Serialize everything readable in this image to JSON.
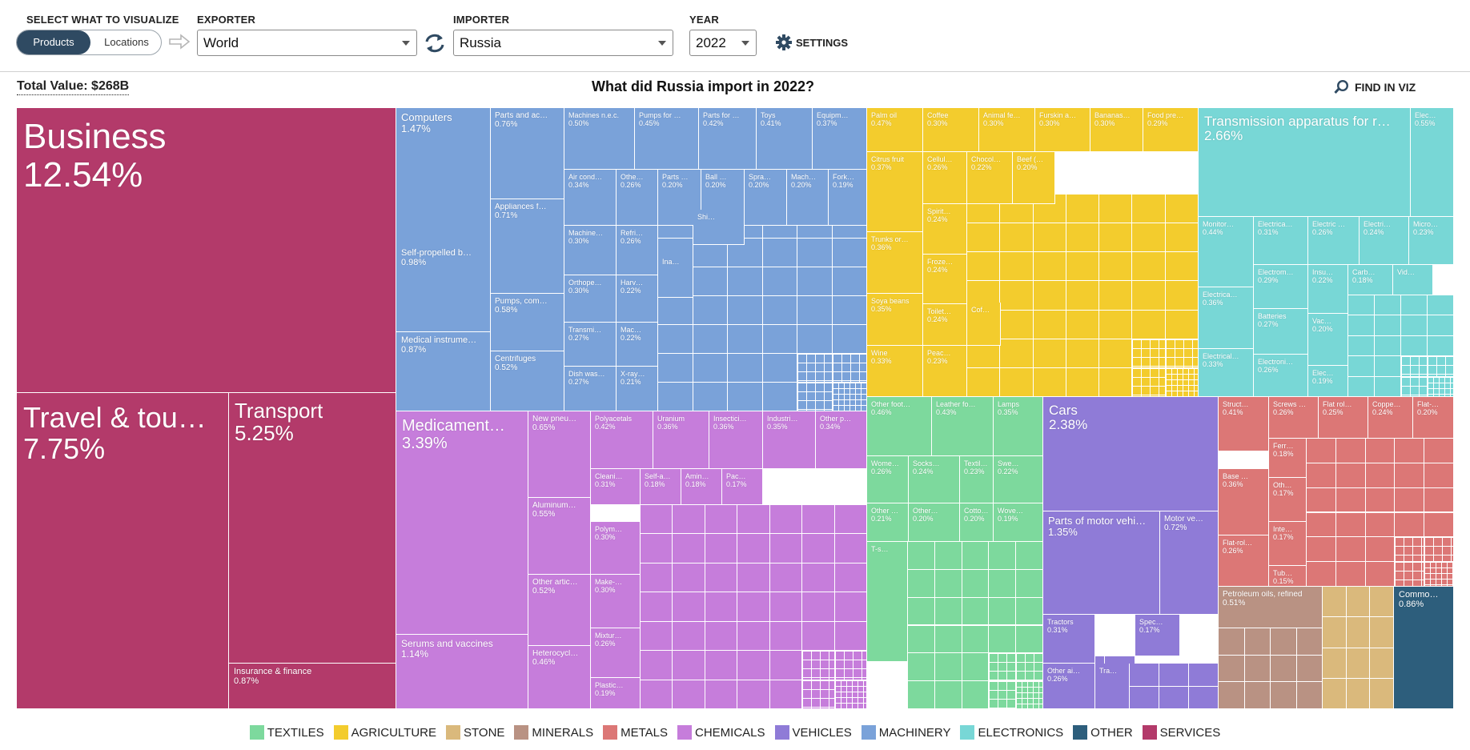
{
  "header": {
    "visualize_label": "SELECT WHAT TO VISUALIZE",
    "products_label": "Products",
    "locations_label": "Locations",
    "exporter_label": "EXPORTER",
    "exporter_value": "World",
    "importer_label": "IMPORTER",
    "importer_value": "Russia",
    "year_label": "YEAR",
    "year_value": "2022",
    "settings_label": "SETTINGS"
  },
  "subheader": {
    "total_value": "Total Value: $268B",
    "title": "What did Russia import in 2022?",
    "find_label": "FIND IN VIZ"
  },
  "colors": {
    "TEXTILES": "#7dd99d",
    "AGRICULTURE": "#f3cc2d",
    "STONE": "#dab97c",
    "MINERALS": "#b99283",
    "METALS": "#dc7776",
    "CHEMICALS": "#c67ddb",
    "VEHICLES": "#8f7bd7",
    "MACHINERY": "#7aa2d9",
    "ELECTRONICS": "#78d7d6",
    "OTHER": "#2d5e7c",
    "SERVICES": "#b33a6a"
  },
  "legend": [
    "TEXTILES",
    "AGRICULTURE",
    "STONE",
    "MINERALS",
    "METALS",
    "CHEMICALS",
    "VEHICLES",
    "MACHINERY",
    "ELECTRONICS",
    "OTHER",
    "SERVICES"
  ],
  "chart_data": {
    "type": "treemap",
    "title": "What did Russia import in 2022?",
    "total": "$268B",
    "items": [
      {
        "name": "Business",
        "share": 12.54,
        "sector": "SERVICES"
      },
      {
        "name": "Travel & tou…",
        "share": 7.75,
        "sector": "SERVICES"
      },
      {
        "name": "Transport",
        "share": 5.25,
        "sector": "SERVICES"
      },
      {
        "name": "Insurance & finance",
        "share": 0.87,
        "sector": "SERVICES"
      },
      {
        "name": "Computers",
        "share": 1.47,
        "sector": "MACHINERY"
      },
      {
        "name": "Self-propelled b…",
        "share": 0.98,
        "sector": "MACHINERY"
      },
      {
        "name": "Medical instrume…",
        "share": 0.87,
        "sector": "MACHINERY"
      },
      {
        "name": "Parts and ac…",
        "share": 0.76,
        "sector": "MACHINERY"
      },
      {
        "name": "Appliances f…",
        "share": 0.71,
        "sector": "MACHINERY"
      },
      {
        "name": "Pumps, com…",
        "share": 0.58,
        "sector": "MACHINERY"
      },
      {
        "name": "Centrifuges",
        "share": 0.52,
        "sector": "MACHINERY"
      },
      {
        "name": "Machines n.e.c.",
        "share": 0.5,
        "sector": "MACHINERY"
      },
      {
        "name": "Pumps for …",
        "share": 0.45,
        "sector": "MACHINERY"
      },
      {
        "name": "Parts for …",
        "share": 0.42,
        "sector": "MACHINERY"
      },
      {
        "name": "Toys",
        "share": 0.41,
        "sector": "MACHINERY"
      },
      {
        "name": "Equipm…",
        "share": 0.37,
        "sector": "MACHINERY"
      },
      {
        "name": "Air cond…",
        "share": 0.34,
        "sector": "MACHINERY"
      },
      {
        "name": "Othe…",
        "share": 0.26,
        "sector": "MACHINERY"
      },
      {
        "name": "Parts …",
        "share": 0.2,
        "sector": "MACHINERY"
      },
      {
        "name": "Ball …",
        "share": 0.2,
        "sector": "MACHINERY"
      },
      {
        "name": "Spra…",
        "share": 0.2,
        "sector": "MACHINERY"
      },
      {
        "name": "Mach…",
        "share": 0.2,
        "sector": "MACHINERY"
      },
      {
        "name": "Fork…",
        "share": 0.19,
        "sector": "MACHINERY"
      },
      {
        "name": "Machine…",
        "share": 0.3,
        "sector": "MACHINERY"
      },
      {
        "name": "Refri…",
        "share": 0.26,
        "sector": "MACHINERY"
      },
      {
        "name": "Orthope…",
        "share": 0.3,
        "sector": "MACHINERY"
      },
      {
        "name": "Harv…",
        "share": 0.22,
        "sector": "MACHINERY"
      },
      {
        "name": "Transmi…",
        "share": 0.27,
        "sector": "MACHINERY"
      },
      {
        "name": "Mac…",
        "share": 0.22,
        "sector": "MACHINERY"
      },
      {
        "name": "Dish was…",
        "share": 0.27,
        "sector": "MACHINERY"
      },
      {
        "name": "X-ray…",
        "share": 0.21,
        "sector": "MACHINERY"
      },
      {
        "name": "Shi…",
        "share": null,
        "sector": "MACHINERY"
      },
      {
        "name": "Ina…",
        "share": null,
        "sector": "MACHINERY"
      },
      {
        "name": "Palm oil",
        "share": 0.47,
        "sector": "AGRICULTURE"
      },
      {
        "name": "Coffee",
        "share": 0.3,
        "sector": "AGRICULTURE"
      },
      {
        "name": "Animal fe…",
        "share": 0.3,
        "sector": "AGRICULTURE"
      },
      {
        "name": "Furskin a…",
        "share": 0.3,
        "sector": "AGRICULTURE"
      },
      {
        "name": "Bananas…",
        "share": 0.3,
        "sector": "AGRICULTURE"
      },
      {
        "name": "Food pre…",
        "share": 0.29,
        "sector": "AGRICULTURE"
      },
      {
        "name": "Citrus fruit",
        "share": 0.37,
        "sector": "AGRICULTURE"
      },
      {
        "name": "Cellul…",
        "share": 0.26,
        "sector": "AGRICULTURE"
      },
      {
        "name": "Chocol…",
        "share": 0.22,
        "sector": "AGRICULTURE"
      },
      {
        "name": "Beef (…",
        "share": 0.2,
        "sector": "AGRICULTURE"
      },
      {
        "name": "Trunks or…",
        "share": 0.36,
        "sector": "AGRICULTURE"
      },
      {
        "name": "Spirit…",
        "share": 0.24,
        "sector": "AGRICULTURE"
      },
      {
        "name": "Froze…",
        "share": 0.24,
        "sector": "AGRICULTURE"
      },
      {
        "name": "Soya beans",
        "share": 0.35,
        "sector": "AGRICULTURE"
      },
      {
        "name": "Toilet…",
        "share": 0.24,
        "sector": "AGRICULTURE"
      },
      {
        "name": "Cof…",
        "share": null,
        "sector": "AGRICULTURE"
      },
      {
        "name": "Wine",
        "share": 0.33,
        "sector": "AGRICULTURE"
      },
      {
        "name": "Peac…",
        "share": 0.23,
        "sector": "AGRICULTURE"
      },
      {
        "name": "Transmission apparatus for r…",
        "share": 2.66,
        "sector": "ELECTRONICS"
      },
      {
        "name": "Elec…",
        "share": 0.55,
        "sector": "ELECTRONICS"
      },
      {
        "name": "Monitor…",
        "share": 0.44,
        "sector": "ELECTRONICS"
      },
      {
        "name": "Electrica…",
        "share": 0.31,
        "sector": "ELECTRONICS"
      },
      {
        "name": "Electric …",
        "share": 0.26,
        "sector": "ELECTRONICS"
      },
      {
        "name": "Electri…",
        "share": 0.24,
        "sector": "ELECTRONICS"
      },
      {
        "name": "Micro…",
        "share": 0.23,
        "sector": "ELECTRONICS"
      },
      {
        "name": "Electrom…",
        "share": 0.29,
        "sector": "ELECTRONICS"
      },
      {
        "name": "Insu…",
        "share": 0.22,
        "sector": "ELECTRONICS"
      },
      {
        "name": "Carb…",
        "share": 0.18,
        "sector": "ELECTRONICS"
      },
      {
        "name": "Vid…",
        "share": null,
        "sector": "ELECTRONICS"
      },
      {
        "name": "Electrica…",
        "share": 0.36,
        "sector": "ELECTRONICS"
      },
      {
        "name": "Batteries",
        "share": 0.27,
        "sector": "ELECTRONICS"
      },
      {
        "name": "Vac…",
        "share": 0.2,
        "sector": "ELECTRONICS"
      },
      {
        "name": "Electrical…",
        "share": 0.33,
        "sector": "ELECTRONICS"
      },
      {
        "name": "Electroni…",
        "share": 0.26,
        "sector": "ELECTRONICS"
      },
      {
        "name": "Elec…",
        "share": 0.19,
        "sector": "ELECTRONICS"
      },
      {
        "name": "Medicament…",
        "share": 3.39,
        "sector": "CHEMICALS"
      },
      {
        "name": "Serums and vaccines",
        "share": 1.14,
        "sector": "CHEMICALS"
      },
      {
        "name": "New pneu…",
        "share": 0.65,
        "sector": "CHEMICALS"
      },
      {
        "name": "Aluminum…",
        "share": 0.55,
        "sector": "CHEMICALS"
      },
      {
        "name": "Other artic…",
        "share": 0.52,
        "sector": "CHEMICALS"
      },
      {
        "name": "Heterocycl…",
        "share": 0.46,
        "sector": "CHEMICALS"
      },
      {
        "name": "Polyacetals",
        "share": 0.42,
        "sector": "CHEMICALS"
      },
      {
        "name": "Uranium",
        "share": 0.36,
        "sector": "CHEMICALS"
      },
      {
        "name": "Insectici…",
        "share": 0.36,
        "sector": "CHEMICALS"
      },
      {
        "name": "Industri…",
        "share": 0.35,
        "sector": "CHEMICALS"
      },
      {
        "name": "Other p…",
        "share": 0.34,
        "sector": "CHEMICALS"
      },
      {
        "name": "Cleani…",
        "share": 0.31,
        "sector": "CHEMICALS"
      },
      {
        "name": "Self-a…",
        "share": 0.18,
        "sector": "CHEMICALS"
      },
      {
        "name": "Amin…",
        "share": 0.18,
        "sector": "CHEMICALS"
      },
      {
        "name": "Pac…",
        "share": 0.17,
        "sector": "CHEMICALS"
      },
      {
        "name": "Polym…",
        "share": 0.3,
        "sector": "CHEMICALS"
      },
      {
        "name": "Make-…",
        "share": 0.3,
        "sector": "CHEMICALS"
      },
      {
        "name": "Mixtur…",
        "share": 0.26,
        "sector": "CHEMICALS"
      },
      {
        "name": "Plastic…",
        "share": 0.19,
        "sector": "CHEMICALS"
      },
      {
        "name": "Other foot…",
        "share": 0.46,
        "sector": "TEXTILES"
      },
      {
        "name": "Leather fo…",
        "share": 0.43,
        "sector": "TEXTILES"
      },
      {
        "name": "Lamps",
        "share": 0.35,
        "sector": "TEXTILES"
      },
      {
        "name": "Wome…",
        "share": 0.26,
        "sector": "TEXTILES"
      },
      {
        "name": "Socks…",
        "share": 0.24,
        "sector": "TEXTILES"
      },
      {
        "name": "Textil…",
        "share": 0.23,
        "sector": "TEXTILES"
      },
      {
        "name": "Swe…",
        "share": 0.22,
        "sector": "TEXTILES"
      },
      {
        "name": "Other …",
        "share": 0.21,
        "sector": "TEXTILES"
      },
      {
        "name": "Other…",
        "share": 0.2,
        "sector": "TEXTILES"
      },
      {
        "name": "Cotto…",
        "share": 0.2,
        "sector": "TEXTILES"
      },
      {
        "name": "Wove…",
        "share": 0.19,
        "sector": "TEXTILES"
      },
      {
        "name": "T-s…",
        "share": null,
        "sector": "TEXTILES"
      },
      {
        "name": "Cars",
        "share": 2.38,
        "sector": "VEHICLES"
      },
      {
        "name": "Parts of motor vehi…",
        "share": 1.35,
        "sector": "VEHICLES"
      },
      {
        "name": "Motor ve…",
        "share": 0.72,
        "sector": "VEHICLES"
      },
      {
        "name": "Tractors",
        "share": 0.31,
        "sector": "VEHICLES"
      },
      {
        "name": "Spec…",
        "share": 0.17,
        "sector": "VEHICLES"
      },
      {
        "name": "Other ai…",
        "share": 0.26,
        "sector": "VEHICLES"
      },
      {
        "name": "Tra…",
        "share": null,
        "sector": "VEHICLES"
      },
      {
        "name": "Struct…",
        "share": 0.41,
        "sector": "METALS"
      },
      {
        "name": "Screws …",
        "share": 0.26,
        "sector": "METALS"
      },
      {
        "name": "Flat rol…",
        "share": 0.25,
        "sector": "METALS"
      },
      {
        "name": "Coppe…",
        "share": 0.24,
        "sector": "METALS"
      },
      {
        "name": "Flat-…",
        "share": 0.2,
        "sector": "METALS"
      },
      {
        "name": "Ferr…",
        "share": 0.18,
        "sector": "METALS"
      },
      {
        "name": "Base …",
        "share": 0.36,
        "sector": "METALS"
      },
      {
        "name": "Oth…",
        "share": 0.17,
        "sector": "METALS"
      },
      {
        "name": "Inte…",
        "share": 0.17,
        "sector": "METALS"
      },
      {
        "name": "Flat-rol…",
        "share": 0.26,
        "sector": "METALS"
      },
      {
        "name": "Tub…",
        "share": 0.15,
        "sector": "METALS"
      },
      {
        "name": "Petroleum oils, refined",
        "share": 0.51,
        "sector": "MINERALS"
      },
      {
        "name": "Commo…",
        "share": 0.86,
        "sector": "OTHER"
      }
    ]
  }
}
